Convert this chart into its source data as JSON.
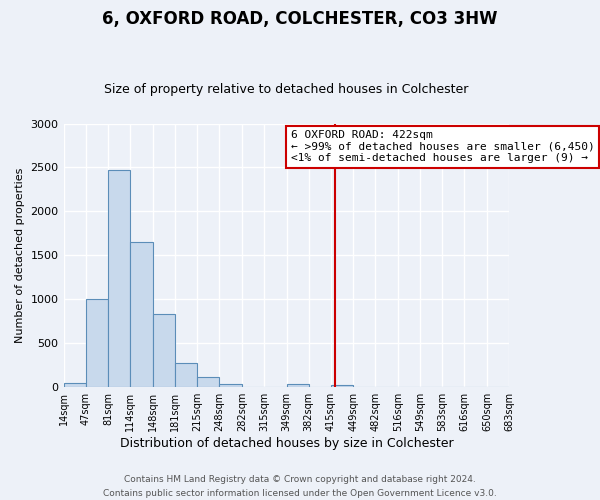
{
  "title": "6, OXFORD ROAD, COLCHESTER, CO3 3HW",
  "subtitle": "Size of property relative to detached houses in Colchester",
  "xlabel": "Distribution of detached houses by size in Colchester",
  "ylabel": "Number of detached properties",
  "footer_line1": "Contains HM Land Registry data © Crown copyright and database right 2024.",
  "footer_line2": "Contains public sector information licensed under the Open Government Licence v3.0.",
  "bins": [
    14,
    47,
    81,
    114,
    148,
    181,
    215,
    248,
    282,
    315,
    349,
    382,
    415,
    449,
    482,
    516,
    549,
    583,
    616,
    650,
    683
  ],
  "counts": [
    50,
    1000,
    2470,
    1650,
    830,
    270,
    120,
    40,
    0,
    0,
    40,
    0,
    25,
    0,
    0,
    0,
    0,
    0,
    0,
    0
  ],
  "bar_color": "#c8d9ec",
  "bar_edge_color": "#5b8db8",
  "bg_color": "#edf1f8",
  "grid_color": "#ffffff",
  "vline_x": 422,
  "vline_color": "#cc0000",
  "annotation_title": "6 OXFORD ROAD: 422sqm",
  "annotation_line2": "← >99% of detached houses are smaller (6,450)",
  "annotation_line3": "<1% of semi-detached houses are larger (9) →",
  "annotation_box_color": "#cc0000",
  "ylim": [
    0,
    3000
  ],
  "yticks": [
    0,
    500,
    1000,
    1500,
    2000,
    2500,
    3000
  ],
  "title_fontsize": 12,
  "subtitle_fontsize": 9,
  "xlabel_fontsize": 9,
  "ylabel_fontsize": 8,
  "tick_fontsize": 8,
  "xtick_fontsize": 7,
  "annotation_fontsize": 8,
  "footer_fontsize": 6.5
}
